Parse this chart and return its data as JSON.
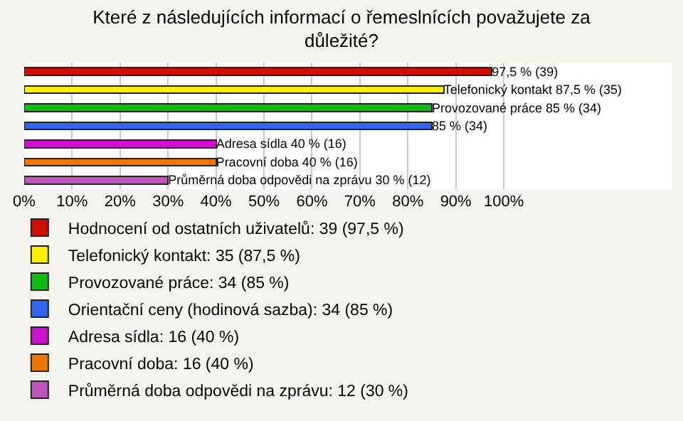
{
  "chart_data": {
    "type": "bar",
    "title": "Které z následujících informací o řemeslnících považujete za důležité?",
    "orientation": "horizontal",
    "stacked": true,
    "grid": "x",
    "legend": "bottom",
    "tick_labels": "x",
    "categories": [
      null,
      null,
      null,
      null,
      null,
      null,
      null
    ],
    "xlim": [
      0,
      135
    ],
    "xticks": [
      {
        "value": 0,
        "label": "0%"
      },
      {
        "value": 10,
        "label": "10%"
      },
      {
        "value": 20,
        "label": "20%"
      },
      {
        "value": 30,
        "label": "30%"
      },
      {
        "value": 40,
        "label": "40%"
      },
      {
        "value": 50,
        "label": "50%"
      },
      {
        "value": 60,
        "label": "60%"
      },
      {
        "value": 70,
        "label": "70%"
      },
      {
        "value": 80,
        "label": "80%"
      },
      {
        "value": 90,
        "label": "90%"
      },
      {
        "value": 100,
        "label": "100%"
      }
    ],
    "series": [
      {
        "name": "Hodnocení od ostatních uživatelů: 39 (97,5 %)",
        "color": "#cc1100",
        "values": [
          97.5,
          null,
          null,
          null,
          null,
          null,
          null
        ],
        "value_labels": [
          "97,5 % (39)",
          null,
          null,
          null,
          null,
          null,
          null
        ]
      },
      {
        "name": "Telefonický kontakt: 35 (87,5 %)",
        "color": "#ffee00",
        "values": [
          null,
          87.5,
          null,
          null,
          null,
          null,
          null
        ],
        "value_labels": [
          null,
          "Telefonický kontakt 87,5 % (35)",
          null,
          null,
          null,
          null,
          null
        ]
      },
      {
        "name": "Provozované práce: 34 (85 %)",
        "color": "#11bb11",
        "values": [
          null,
          null,
          85,
          null,
          null,
          null,
          null
        ],
        "value_labels": [
          null,
          null,
          "Provozované práce 85 % (34)",
          null,
          null,
          null,
          null
        ]
      },
      {
        "name": "Orientační ceny (hodinová sazba): 34 (85 %)",
        "color": "#3366ee",
        "values": [
          null,
          null,
          null,
          85,
          null,
          null,
          null
        ],
        "value_labels": [
          null,
          null,
          null,
          "85 % (34)",
          null,
          null,
          null
        ]
      },
      {
        "name": "Adresa sídla: 16 (40 %)",
        "color": "#cc11cc",
        "values": [
          null,
          null,
          null,
          null,
          40,
          null,
          null
        ],
        "value_labels": [
          null,
          null,
          null,
          null,
          "Adresa sídla 40 % (16)",
          null,
          null
        ]
      },
      {
        "name": "Pracovní doba: 16 (40 %)",
        "color": "#ee7700",
        "values": [
          null,
          null,
          null,
          null,
          null,
          40,
          null
        ],
        "value_labels": [
          null,
          null,
          null,
          null,
          null,
          "Pracovní doba 40 % (16)",
          null
        ]
      },
      {
        "name": "Průměrná doba odpovědi na zprávu: 12 (30 %)",
        "color": "#bb55bb",
        "values": [
          null,
          null,
          null,
          null,
          null,
          null,
          30
        ],
        "value_labels": [
          null,
          null,
          null,
          null,
          null,
          null,
          "Průměrná doba odpovědi na zprávu 30 % (12)"
        ]
      }
    ]
  }
}
